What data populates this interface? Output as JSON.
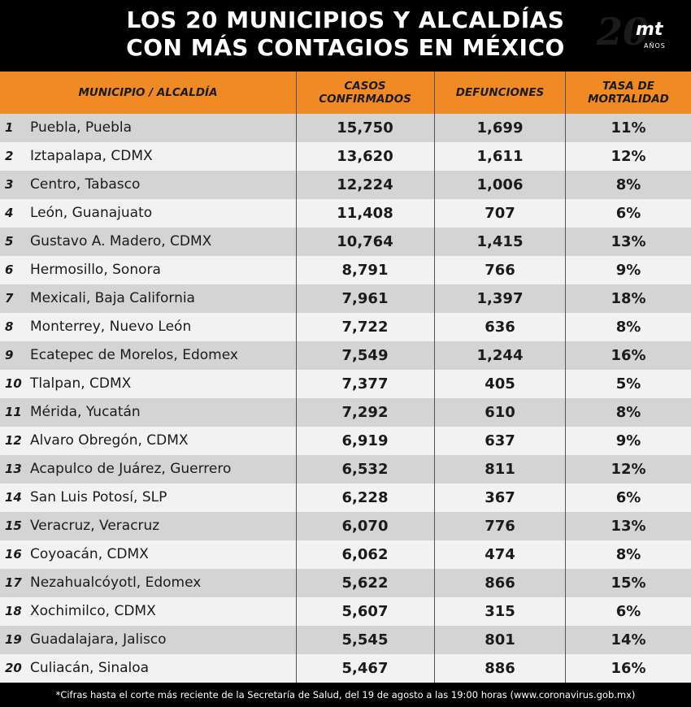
{
  "title_line1": "LOS 20 MUNICIPIOS Y ALCALDÍAS",
  "title_line2": "CON MÁS CONTAGIOS EN MÉXICO",
  "logo": {
    "number": "20",
    "brand": "mt",
    "sub": "AÑOS"
  },
  "colors": {
    "header": "#f08a24",
    "title_bg": "#000000",
    "row_dark": "#d4d4d4",
    "row_light": "#f2f2f2"
  },
  "chart_data": {
    "type": "table",
    "columns": [
      "MUNICIPIO / ALCALDÍA",
      "CASOS CONFIRMADOS",
      "DEFUNCIONES",
      "TASA DE MORTALIDAD"
    ],
    "rows": [
      {
        "rank": "1",
        "name": "Puebla, Puebla",
        "cases": "15,750",
        "deaths": "1,699",
        "rate": "11%"
      },
      {
        "rank": "2",
        "name": "Iztapalapa, CDMX",
        "cases": "13,620",
        "deaths": "1,611",
        "rate": "12%"
      },
      {
        "rank": "3",
        "name": "Centro, Tabasco",
        "cases": "12,224",
        "deaths": "1,006",
        "rate": "8%"
      },
      {
        "rank": "4",
        "name": "León, Guanajuato",
        "cases": "11,408",
        "deaths": "707",
        "rate": "6%"
      },
      {
        "rank": "5",
        "name": "Gustavo A. Madero, CDMX",
        "cases": "10,764",
        "deaths": "1,415",
        "rate": "13%"
      },
      {
        "rank": "6",
        "name": "Hermosillo, Sonora",
        "cases": "8,791",
        "deaths": "766",
        "rate": "9%"
      },
      {
        "rank": "7",
        "name": "Mexicali, Baja California",
        "cases": "7,961",
        "deaths": "1,397",
        "rate": "18%"
      },
      {
        "rank": "8",
        "name": "Monterrey, Nuevo León",
        "cases": "7,722",
        "deaths": "636",
        "rate": "8%"
      },
      {
        "rank": "9",
        "name": "Ecatepec de Morelos, Edomex",
        "cases": "7,549",
        "deaths": "1,244",
        "rate": "16%"
      },
      {
        "rank": "10",
        "name": "Tlalpan, CDMX",
        "cases": "7,377",
        "deaths": "405",
        "rate": "5%"
      },
      {
        "rank": "11",
        "name": "Mérida, Yucatán",
        "cases": "7,292",
        "deaths": "610",
        "rate": "8%"
      },
      {
        "rank": "12",
        "name": "Alvaro Obregón, CDMX",
        "cases": "6,919",
        "deaths": "637",
        "rate": "9%"
      },
      {
        "rank": "13",
        "name": "Acapulco de Juárez, Guerrero",
        "cases": "6,532",
        "deaths": "811",
        "rate": "12%"
      },
      {
        "rank": "14",
        "name": "San Luis Potosí, SLP",
        "cases": "6,228",
        "deaths": "367",
        "rate": "6%"
      },
      {
        "rank": "15",
        "name": "Veracruz, Veracruz",
        "cases": "6,070",
        "deaths": "776",
        "rate": "13%"
      },
      {
        "rank": "16",
        "name": "Coyoacán, CDMX",
        "cases": "6,062",
        "deaths": "474",
        "rate": "8%"
      },
      {
        "rank": "17",
        "name": "Nezahualcóyotl, Edomex",
        "cases": "5,622",
        "deaths": "866",
        "rate": "15%"
      },
      {
        "rank": "18",
        "name": "Xochimilco, CDMX",
        "cases": "5,607",
        "deaths": "315",
        "rate": "6%"
      },
      {
        "rank": "19",
        "name": "Guadalajara, Jalisco",
        "cases": "5,545",
        "deaths": "801",
        "rate": "14%"
      },
      {
        "rank": "20",
        "name": "Culiacán, Sinaloa",
        "cases": "5,467",
        "deaths": "886",
        "rate": "16%"
      }
    ]
  },
  "headers": {
    "municipio": "MUNICIPIO / ALCALDÍA",
    "casos_1": "CASOS",
    "casos_2": "CONFIRMADOS",
    "defunciones": "DEFUNCIONES",
    "tasa_1": "TASA DE",
    "tasa_2": "MORTALIDAD"
  },
  "footer": "*Cifras hasta el corte más reciente de la Secretaría de Salud, del 19 de agosto a las 19:00 horas (www.coronavirus.gob.mx)"
}
